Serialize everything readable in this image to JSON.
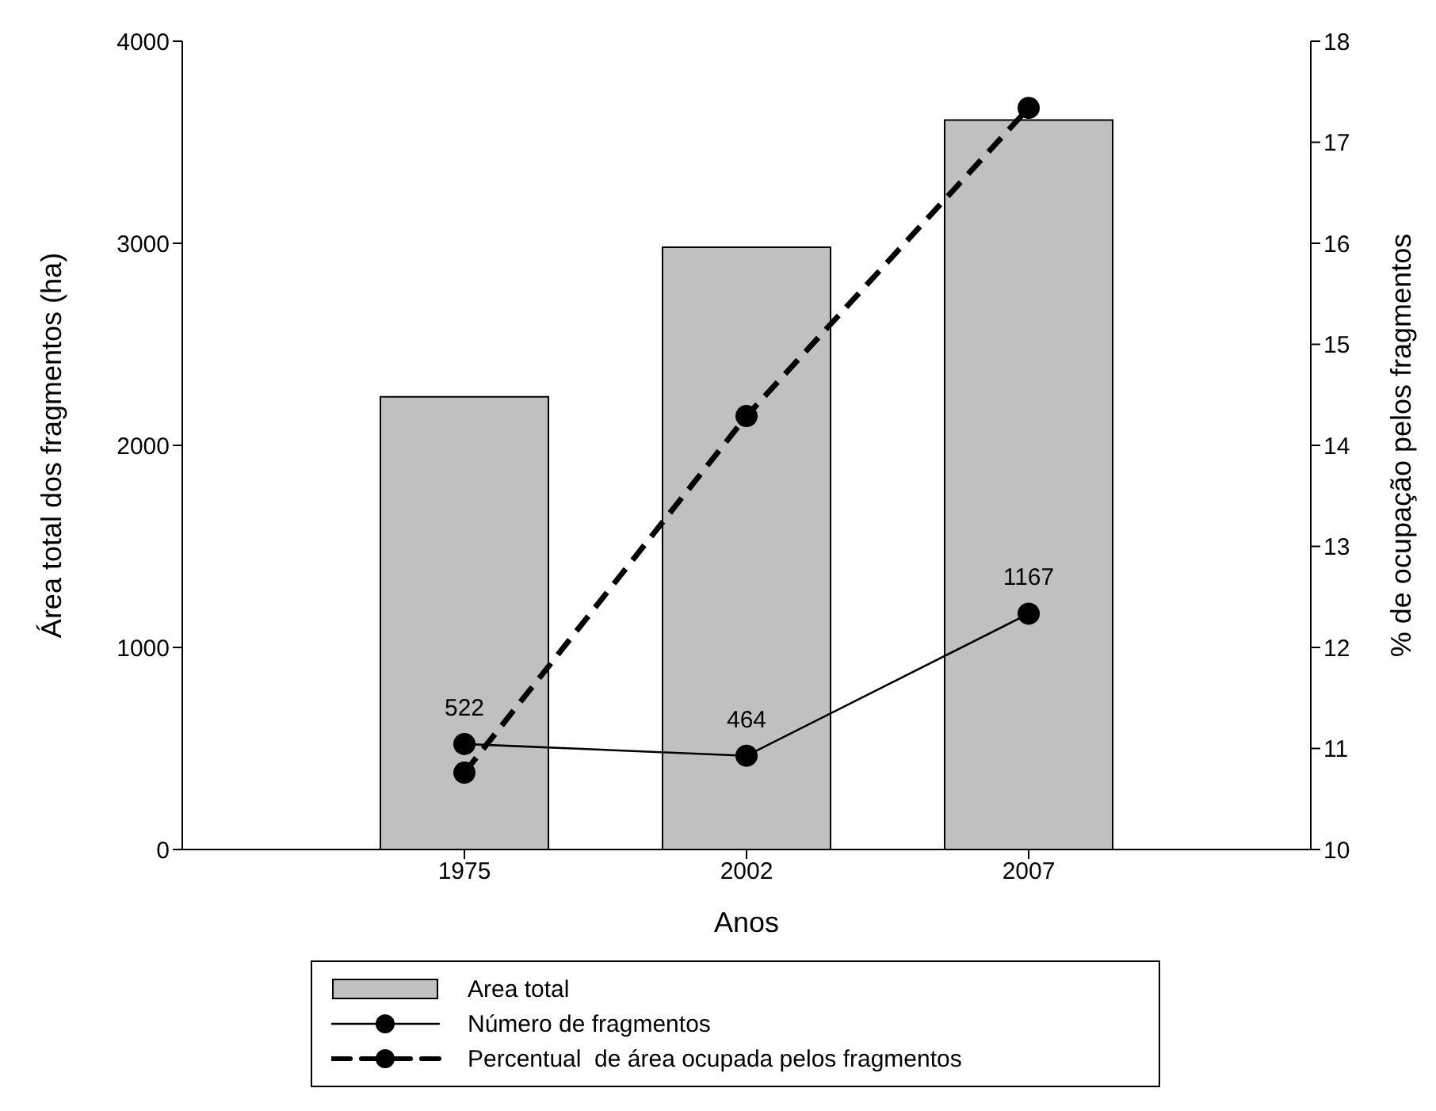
{
  "chart_data": {
    "type": "bar",
    "xlabel": "Anos",
    "ylabel": "Área total dos fragmentos (ha)",
    "y2label": "% de ocupação pelos fragmentos",
    "categories": [
      "1975",
      "2002",
      "2007"
    ],
    "series": [
      {
        "name": "Area total",
        "color": "#c0c0c0",
        "values": [
          2240,
          2980,
          3610
        ]
      },
      {
        "name": "Número de fragmentos",
        "type": "line",
        "color": "#000000",
        "values": [
          522,
          464,
          1167
        ],
        "value_labels": [
          "522",
          "464",
          "1167"
        ],
        "line_style": "solid"
      },
      {
        "name": "Percentual  de área ocupada pelos fragmentos",
        "type": "line",
        "color": "#000000",
        "axis": "y2",
        "values": [
          10.76,
          14.29,
          17.34
        ],
        "line_style": "dashed"
      }
    ],
    "ylim": [
      0,
      4000
    ],
    "yticks": [
      0,
      1000,
      2000,
      3000,
      4000
    ],
    "y2lim": [
      10,
      18
    ],
    "y2ticks": [
      10,
      11,
      12,
      13,
      14,
      15,
      16,
      17,
      18
    ],
    "marker": "circle",
    "grid": false,
    "legend": "bottom"
  }
}
